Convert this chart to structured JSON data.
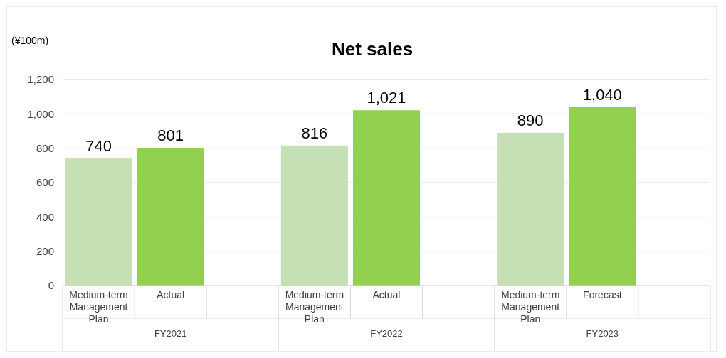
{
  "chart_data": {
    "type": "bar",
    "title": "Net sales",
    "ylabel": "(¥100m)",
    "categories": [
      "Medium-term Management Plan",
      "Actual",
      null,
      "Medium-term Management Plan",
      "Actual",
      null,
      "Medium-term Management Plan",
      "Forecast",
      null
    ],
    "values": [
      740,
      801,
      null,
      816,
      1021,
      null,
      890,
      1040,
      null
    ],
    "colors": [
      "#c5e0b4",
      "#92d050",
      null,
      "#c5e0b4",
      "#92d050",
      null,
      "#c5e0b4",
      "#92d050",
      null
    ],
    "value_labels": [
      "740",
      "801",
      null,
      "816",
      "1,021",
      null,
      "890",
      "1,040",
      null
    ],
    "annotations": [
      "FY2021",
      "FY2022",
      "FY2023"
    ],
    "ylim": [
      0,
      1200
    ],
    "yticks": [
      0,
      200,
      400,
      600,
      800,
      {
        "value": 1000,
        "label": "1,000"
      },
      {
        "value": 1200,
        "label": "1,200"
      }
    ],
    "grid": "y"
  }
}
